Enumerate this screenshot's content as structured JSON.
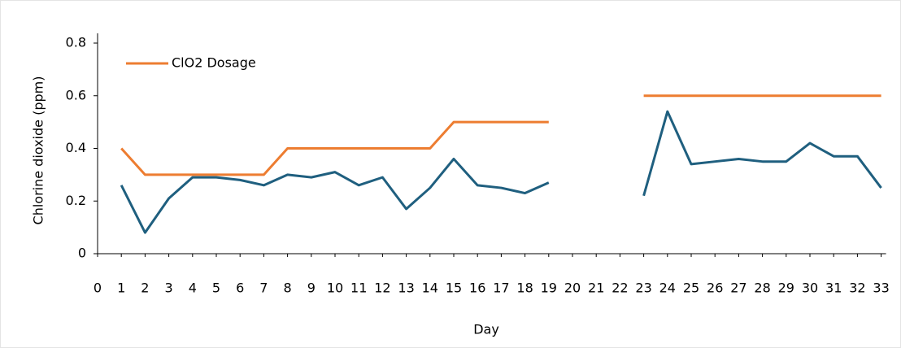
{
  "chart_data": {
    "type": "line",
    "x_label": "Day",
    "y_label": "Chlorine dioxide (ppm)",
    "x": [
      1,
      2,
      3,
      4,
      5,
      6,
      7,
      8,
      9,
      10,
      11,
      12,
      13,
      14,
      15,
      16,
      17,
      18,
      19,
      20,
      21,
      22,
      23,
      24,
      25,
      26,
      27,
      28,
      29,
      30,
      31,
      32,
      33
    ],
    "series": [
      {
        "name": "ClO2 Dosage",
        "color": "#ed7d31",
        "values": [
          0.4,
          0.3,
          0.3,
          0.3,
          0.3,
          0.3,
          0.3,
          0.4,
          0.4,
          0.4,
          0.4,
          0.4,
          0.4,
          0.4,
          0.5,
          0.5,
          0.5,
          0.5,
          0.5,
          null,
          null,
          null,
          0.6,
          0.6,
          0.6,
          0.6,
          0.6,
          0.6,
          0.6,
          0.6,
          0.6,
          0.6,
          0.6
        ]
      },
      {
        "color": "#1f5f7f",
        "values": [
          0.26,
          0.08,
          0.21,
          0.29,
          0.29,
          0.28,
          0.26,
          0.3,
          0.29,
          0.31,
          0.26,
          0.29,
          0.17,
          0.25,
          0.36,
          0.26,
          0.25,
          0.23,
          0.27,
          null,
          null,
          null,
          0.22,
          0.54,
          0.34,
          0.35,
          0.36,
          0.35,
          0.35,
          0.42,
          0.37,
          0.37,
          0.25
        ]
      }
    ],
    "xlim": [
      0,
      33
    ],
    "xticks": [
      0,
      1,
      2,
      3,
      4,
      5,
      6,
      7,
      8,
      9,
      10,
      11,
      12,
      13,
      14,
      15,
      16,
      17,
      18,
      19,
      20,
      21,
      22,
      23,
      24,
      25,
      26,
      27,
      28,
      29,
      30,
      31,
      32,
      33
    ],
    "ylim": [
      0,
      0.8
    ],
    "yticks": [
      0,
      0.2,
      0.4,
      0.6,
      0.8
    ],
    "legend": "top-left",
    "grid": false
  }
}
